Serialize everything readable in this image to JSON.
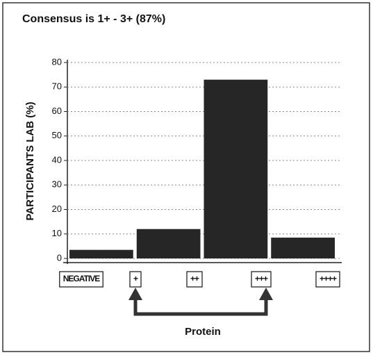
{
  "chart_data": {
    "type": "bar",
    "title": "Consensus is  1+ - 3+ (87%)",
    "y_label": "PARTICIPANTS LAB (%)",
    "x_label": "Protein",
    "categories": [
      "NEGATIVE",
      "+",
      "++",
      "+++",
      "++++"
    ],
    "values": [
      3.5,
      12,
      73,
      8.5,
      null
    ],
    "color": "#262626",
    "ylim": [
      0,
      80
    ],
    "yticks": [
      0,
      10,
      20,
      30,
      40,
      50,
      60,
      70,
      80
    ],
    "grid": true
  }
}
